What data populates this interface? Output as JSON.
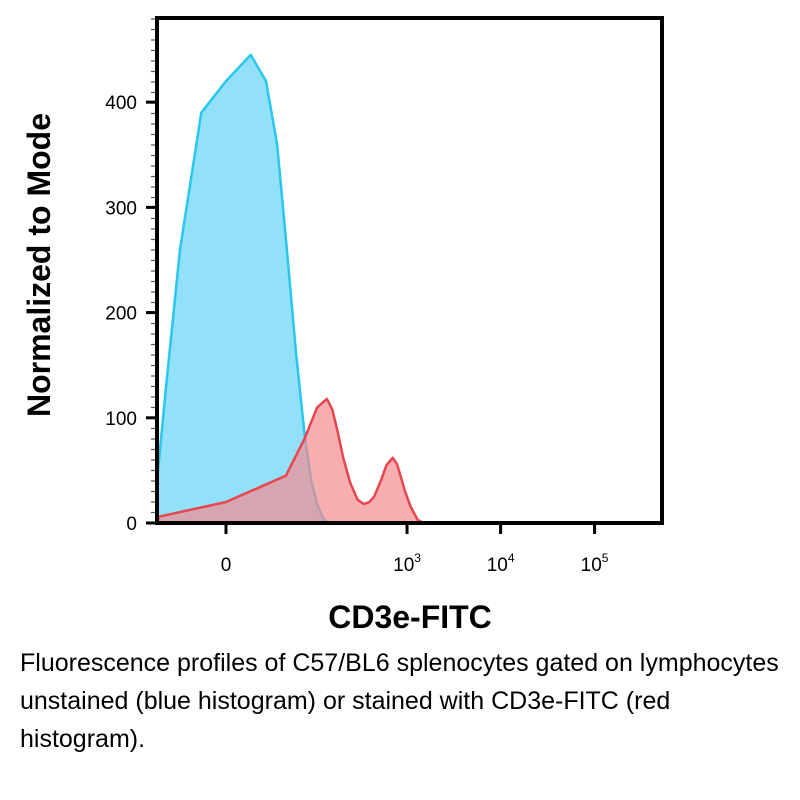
{
  "chart_data": {
    "type": "area",
    "title": "",
    "xlabel": "CD3e-FITC",
    "ylabel": "Normalized to Mode",
    "x_scale": "biexponential (logicle)",
    "ylim": [
      0,
      480
    ],
    "y_ticks": [
      {
        "value": 0,
        "label": "0"
      },
      {
        "value": 100,
        "label": "100"
      },
      {
        "value": 200,
        "label": "200"
      },
      {
        "value": 300,
        "label": "300"
      },
      {
        "value": 400,
        "label": "400"
      }
    ],
    "x_ticks": [
      {
        "value": 0,
        "base": "0",
        "exp": ""
      },
      {
        "value": 1000,
        "base": "10",
        "exp": "3"
      },
      {
        "value": 10000,
        "base": "10",
        "exp": "4"
      },
      {
        "value": 100000,
        "base": "10",
        "exp": "5"
      }
    ],
    "grid": false,
    "legend": "none",
    "series": [
      {
        "color": "#29c6ef",
        "fill": "#7fdcf7",
        "x": [
          -120,
          -90,
          -60,
          -40,
          -25,
          -10,
          0,
          10,
          20,
          30,
          40,
          55,
          70,
          85,
          100,
          115,
          130,
          150
        ],
        "y": [
          0,
          8,
          40,
          130,
          260,
          390,
          420,
          445,
          420,
          360,
          270,
          160,
          85,
          40,
          18,
          6,
          0,
          0
        ]
      },
      {
        "color": "#e8464e",
        "fill": "#f48c90",
        "x": [
          -90,
          -50,
          0,
          40,
          70,
          100,
          130,
          150,
          175,
          200,
          240,
          290,
          340,
          390,
          440,
          520,
          600,
          700,
          780,
          850,
          950,
          1100,
          1300,
          1500,
          1800,
          100000
        ],
        "y": [
          0,
          6,
          20,
          45,
          80,
          110,
          118,
          108,
          85,
          62,
          38,
          22,
          18,
          20,
          25,
          40,
          55,
          62,
          56,
          45,
          30,
          15,
          3,
          0,
          0,
          0
        ]
      }
    ]
  },
  "caption": "Fluorescence profiles of C57/BL6 splenocytes gated on lymphocytes unstained (blue histogram) or stained with CD3e-FITC (red histogram)."
}
